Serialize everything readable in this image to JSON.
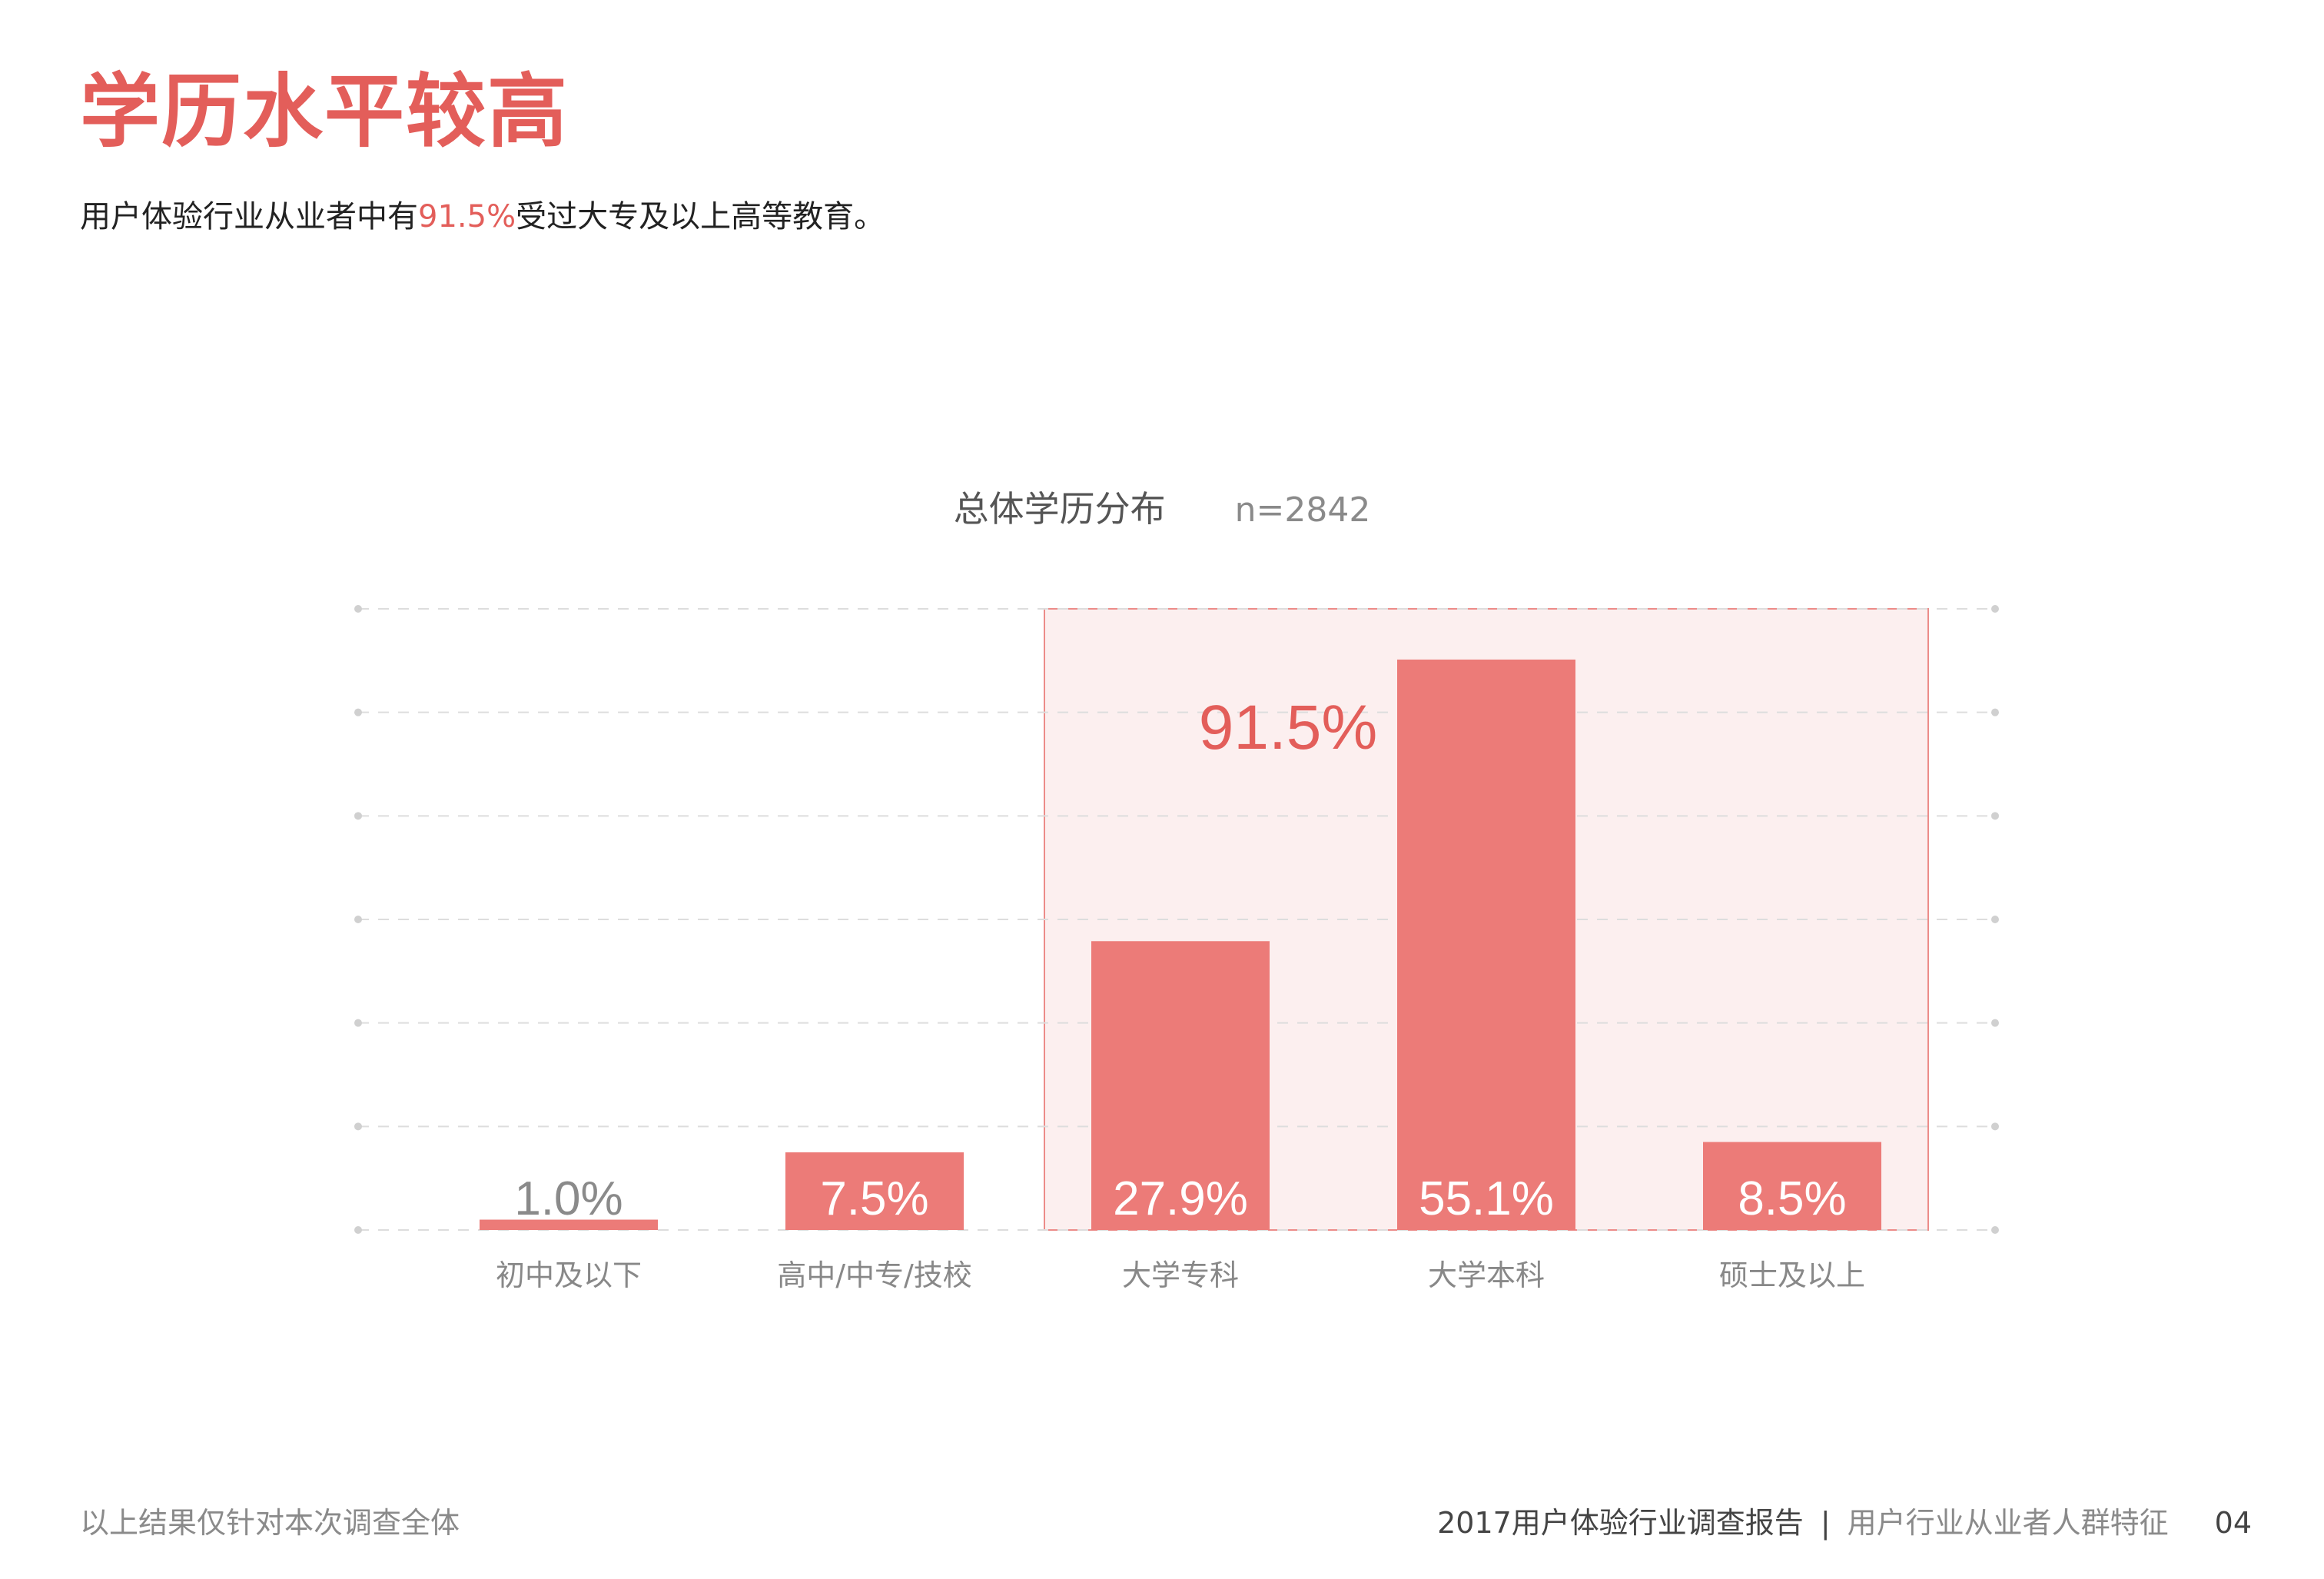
{
  "header": {
    "title": "学历水平较高",
    "subtitle_prefix": "用户体验行业从业者中有",
    "subtitle_highlight": "91.5%",
    "subtitle_suffix": "受过大专及以上高等教育。"
  },
  "chart_title": "总体学历分布",
  "chart_n": "n=2842",
  "chart_data": {
    "type": "bar",
    "categories": [
      "初中及以下",
      "高中/中专/技校",
      "大学专科",
      "大学本科",
      "硕士及以上"
    ],
    "values": [
      1.0,
      7.5,
      27.9,
      55.1,
      8.5
    ],
    "value_labels": [
      "1.0%",
      "7.5%",
      "27.9%",
      "55.1%",
      "8.5%"
    ],
    "ylim": [
      0,
      60
    ],
    "grid": true,
    "highlight": {
      "categories": [
        "大学专科",
        "大学本科",
        "硕士及以上"
      ],
      "label": "91.5%"
    }
  },
  "colors": {
    "accent": "#E35E5A",
    "bar": "#EC7B78",
    "highlight_fill": "#FCEFEF",
    "highlight_border": "#EC8C89",
    "grid": "#DDDDDD"
  },
  "footer": {
    "note": "以上结果仅针对本次调查全体",
    "report": "2017用户体验行业调查报告",
    "separator": "|",
    "section": "用户行业从业者人群特征",
    "page": "04"
  }
}
